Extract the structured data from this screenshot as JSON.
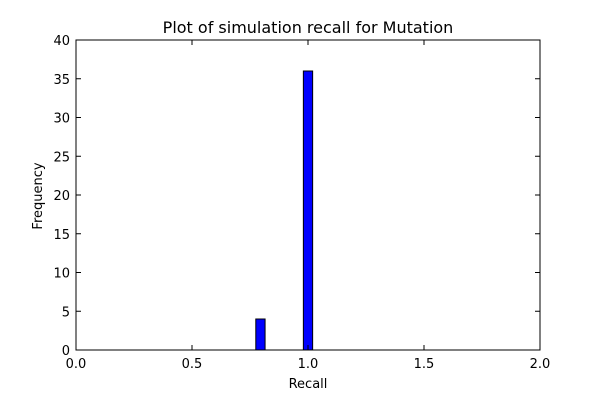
{
  "chart_data": {
    "type": "bar",
    "title": "Plot of simulation recall for Mutation",
    "xlabel": "Recall",
    "ylabel": "Frequency",
    "xlim": [
      0,
      2.0
    ],
    "ylim": [
      0,
      40
    ],
    "x_ticks": [
      "0.0",
      "0.5",
      "1.0",
      "1.5",
      "2.0"
    ],
    "y_ticks": [
      "0",
      "5",
      "10",
      "15",
      "20",
      "25",
      "30",
      "35",
      "40"
    ],
    "bins": [
      {
        "x_start": 0.775,
        "x_end": 0.815,
        "value": 4
      },
      {
        "x_start": 0.98,
        "x_end": 1.02,
        "value": 36
      }
    ],
    "bar_color": "#0000ff",
    "grid": false,
    "legend": "none"
  }
}
